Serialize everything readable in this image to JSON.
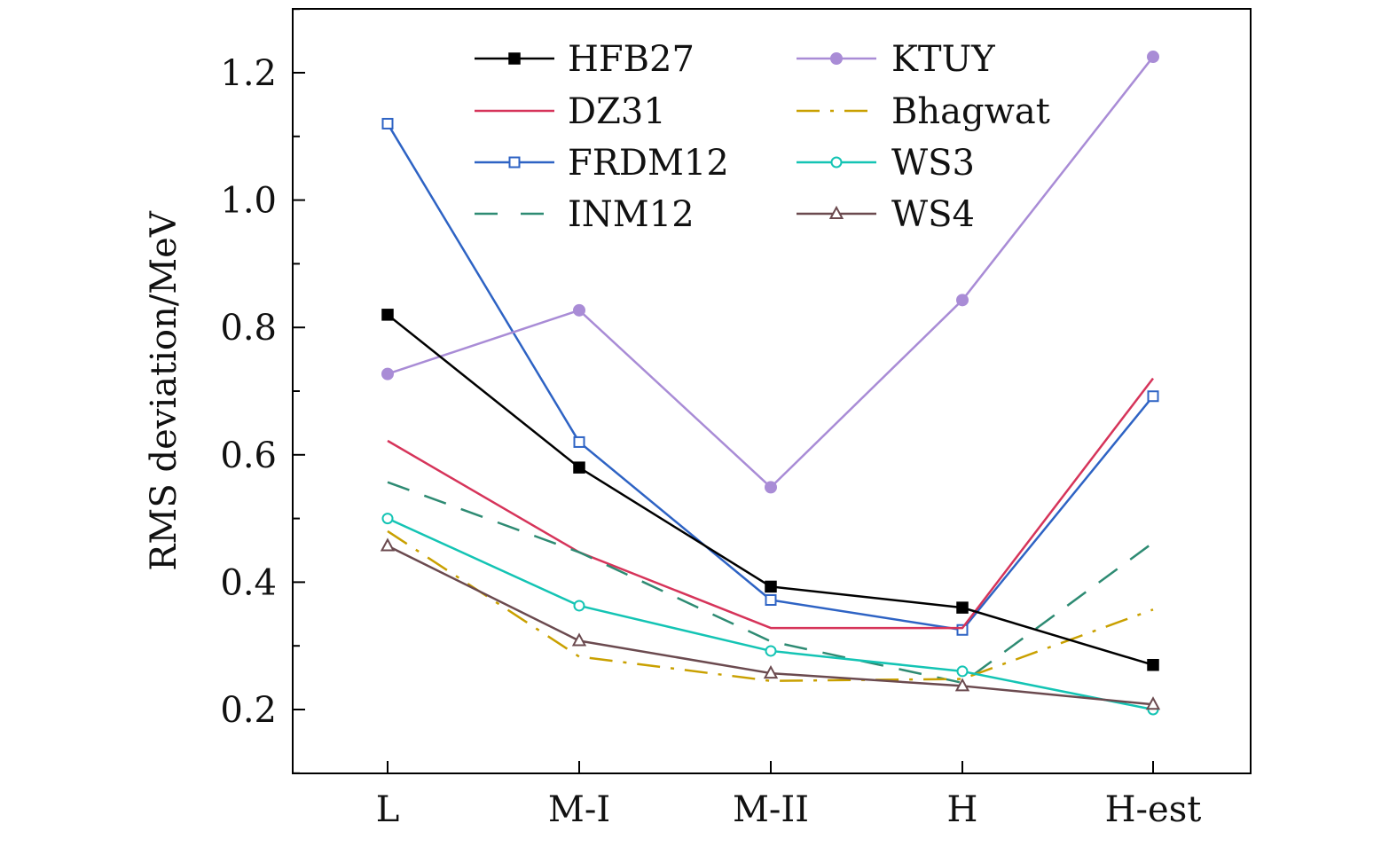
{
  "chart_data": {
    "type": "line",
    "title": "",
    "xlabel": "",
    "ylabel": "RMS deviation/MeV",
    "categories": [
      "L",
      "M-I",
      "M-II",
      "H",
      "H-est"
    ],
    "ylim": [
      0.1,
      1.3
    ],
    "yticks": [
      "0.2",
      "0.4",
      "0.6",
      "0.8",
      "1.0",
      "1.2"
    ],
    "grid": false,
    "legend_position": "top-center",
    "series": [
      {
        "name": "HFB27",
        "values": [
          0.82,
          0.58,
          0.393,
          0.36,
          0.27
        ],
        "color": "#000000",
        "marker": "filled-square",
        "dash": "solid"
      },
      {
        "name": "DZ31",
        "values": [
          0.622,
          0.447,
          0.328,
          0.328,
          0.72
        ],
        "color": "#d6345a",
        "marker": "none",
        "dash": "solid"
      },
      {
        "name": "FRDM12",
        "values": [
          1.12,
          0.62,
          0.372,
          0.325,
          0.692
        ],
        "color": "#2e63c4",
        "marker": "open-square",
        "dash": "solid"
      },
      {
        "name": "INM12",
        "values": [
          0.557,
          0.447,
          0.307,
          0.242,
          0.462
        ],
        "color": "#2e8b73",
        "marker": "none",
        "dash": "dashed"
      },
      {
        "name": "KTUY",
        "values": [
          0.727,
          0.827,
          0.549,
          0.843,
          1.225
        ],
        "color": "#a98cd6",
        "marker": "filled-circle",
        "dash": "solid"
      },
      {
        "name": "Bhagwat",
        "values": [
          0.48,
          0.283,
          0.245,
          0.248,
          0.357
        ],
        "color": "#c9a000",
        "marker": "none",
        "dash": "dashdot"
      },
      {
        "name": "WS3",
        "values": [
          0.5,
          0.363,
          0.292,
          0.26,
          0.2
        ],
        "color": "#14c4b4",
        "marker": "open-circle",
        "dash": "solid"
      },
      {
        "name": "WS4",
        "values": [
          0.457,
          0.308,
          0.257,
          0.237,
          0.208
        ],
        "color": "#6b4a4f",
        "marker": "open-triangle",
        "dash": "solid"
      }
    ]
  }
}
